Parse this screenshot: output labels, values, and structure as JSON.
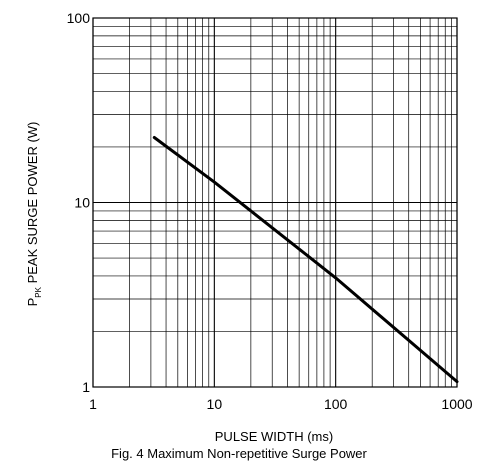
{
  "chart_data": {
    "type": "line",
    "title": "",
    "xlabel": "PULSE WIDTH (ms)",
    "ylabel": {
      "main": "P",
      "sub": "PK",
      "rest": " PEAK SURGE POWER (W)"
    },
    "x_scale": "log",
    "y_scale": "log",
    "xlim": [
      1,
      1000
    ],
    "ylim": [
      1,
      100
    ],
    "x_ticks": [
      "1",
      "10",
      "100",
      "1000"
    ],
    "y_ticks": [
      "1",
      "10",
      "100"
    ],
    "grid": true,
    "series": [
      {
        "x": [
          3.2,
          10,
          100,
          1000
        ],
        "y": [
          22.5,
          12.9,
          3.9,
          1.07
        ]
      }
    ]
  },
  "caption": "Fig. 4  Maximum Non-repetitive Surge Power",
  "colors": {
    "grid": "#000000",
    "line": "#000000",
    "background": "#ffffff"
  }
}
